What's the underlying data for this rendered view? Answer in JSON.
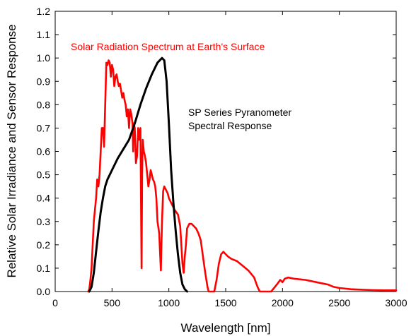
{
  "chart_data": {
    "type": "line",
    "title": "",
    "xlabel": "Wavelength [nm]",
    "ylabel": "Relative Solar Irradiance and Sensor Response",
    "xlim": [
      0,
      3000
    ],
    "ylim": [
      0,
      1.2
    ],
    "xticks": [
      0,
      500,
      1000,
      1500,
      2000,
      2500,
      3000
    ],
    "yticks": [
      0.0,
      0.1,
      0.2,
      0.3,
      0.4,
      0.5,
      0.6,
      0.7,
      0.8,
      0.9,
      1.0,
      1.1,
      1.2
    ],
    "grid": false,
    "series": [
      {
        "name": "Solar Radiation Spectrum at Earth's Surface",
        "color": "#ff0000",
        "x": [
          290,
          300,
          310,
          320,
          330,
          340,
          350,
          360,
          370,
          380,
          390,
          400,
          410,
          420,
          430,
          440,
          450,
          460,
          470,
          480,
          490,
          500,
          510,
          520,
          530,
          540,
          550,
          560,
          570,
          580,
          590,
          600,
          610,
          620,
          630,
          640,
          650,
          660,
          670,
          680,
          686,
          690,
          700,
          710,
          720,
          730,
          740,
          750,
          760,
          765,
          770,
          780,
          790,
          800,
          810,
          820,
          830,
          840,
          850,
          860,
          870,
          880,
          890,
          900,
          915,
          930,
          935,
          940,
          950,
          960,
          970,
          990,
          1000,
          1020,
          1050,
          1080,
          1100,
          1120,
          1130,
          1140,
          1150,
          1160,
          1180,
          1200,
          1220,
          1240,
          1260,
          1280,
          1300,
          1320,
          1340,
          1350,
          1370,
          1400,
          1420,
          1440,
          1460,
          1480,
          1500,
          1520,
          1550,
          1600,
          1650,
          1700,
          1750,
          1780,
          1800,
          1820,
          1850,
          1900,
          1950,
          1980,
          2000,
          2020,
          2050,
          2100,
          2200,
          2300,
          2400,
          2450,
          2500,
          2600,
          2700,
          2800,
          2900,
          3000
        ],
        "y": [
          0.0,
          0.01,
          0.05,
          0.1,
          0.2,
          0.3,
          0.35,
          0.4,
          0.48,
          0.45,
          0.5,
          0.6,
          0.7,
          0.7,
          0.62,
          0.8,
          0.98,
          0.97,
          0.99,
          0.98,
          0.92,
          0.97,
          0.95,
          0.88,
          0.92,
          0.93,
          0.9,
          0.88,
          0.89,
          0.86,
          0.83,
          0.85,
          0.82,
          0.8,
          0.75,
          0.78,
          0.7,
          0.78,
          0.76,
          0.72,
          0.6,
          0.72,
          0.7,
          0.55,
          0.58,
          0.7,
          0.65,
          0.7,
          0.1,
          0.5,
          0.65,
          0.6,
          0.58,
          0.55,
          0.5,
          0.45,
          0.48,
          0.52,
          0.5,
          0.48,
          0.47,
          0.45,
          0.4,
          0.3,
          0.25,
          0.09,
          0.2,
          0.3,
          0.43,
          0.45,
          0.44,
          0.42,
          0.4,
          0.38,
          0.35,
          0.33,
          0.28,
          0.12,
          0.08,
          0.15,
          0.2,
          0.27,
          0.29,
          0.29,
          0.28,
          0.27,
          0.25,
          0.22,
          0.15,
          0.08,
          0.02,
          0.0,
          0.0,
          0.0,
          0.05,
          0.12,
          0.16,
          0.17,
          0.16,
          0.15,
          0.14,
          0.13,
          0.11,
          0.09,
          0.06,
          0.02,
          0.0,
          0.0,
          0.0,
          0.0,
          0.03,
          0.05,
          0.04,
          0.055,
          0.06,
          0.055,
          0.05,
          0.04,
          0.03,
          0.02,
          0.015,
          0.01,
          0.008,
          0.006,
          0.005,
          0.005
        ]
      },
      {
        "name": "SP Series Pyranometer Spectral Response",
        "color": "#000000",
        "x": [
          300,
          320,
          340,
          360,
          380,
          400,
          420,
          440,
          460,
          480,
          500,
          550,
          600,
          650,
          700,
          750,
          800,
          850,
          900,
          940,
          960,
          980,
          1000,
          1020,
          1040,
          1060,
          1080,
          1100,
          1120,
          1140,
          1160
        ],
        "y": [
          0.0,
          0.02,
          0.08,
          0.17,
          0.26,
          0.34,
          0.4,
          0.45,
          0.48,
          0.5,
          0.52,
          0.57,
          0.61,
          0.65,
          0.72,
          0.8,
          0.87,
          0.93,
          0.98,
          1.0,
          0.99,
          0.9,
          0.72,
          0.52,
          0.38,
          0.26,
          0.16,
          0.08,
          0.03,
          0.01,
          0.0
        ]
      }
    ],
    "annotations": [
      {
        "text": "Solar Radiation Spectrum at Earth's Surface",
        "color": "#ff0000"
      },
      {
        "text": "SP Series Pyranometer",
        "color": "#000000"
      },
      {
        "text": "Spectral Response",
        "color": "#000000"
      }
    ]
  }
}
